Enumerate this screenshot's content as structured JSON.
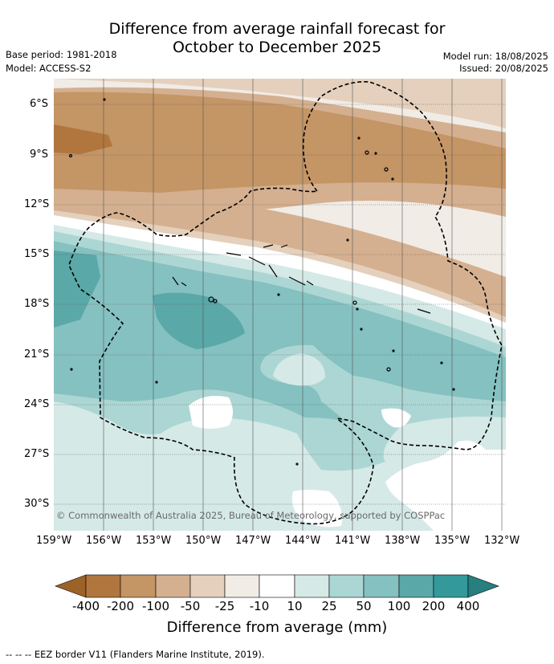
{
  "title": {
    "line1": "Difference from average rainfall forecast for",
    "line2": "October to December 2025"
  },
  "meta": {
    "base_period": "Base period: 1981-2018",
    "model": "Model: ACCESS-S2",
    "model_run": "Model run: 18/08/2025",
    "issued": "Issued: 20/08/2025"
  },
  "axes": {
    "lat_labels": [
      "6°S",
      "9°S",
      "12°S",
      "15°S",
      "18°S",
      "21°S",
      "24°S",
      "27°S",
      "30°S"
    ],
    "lon_labels": [
      "159°W",
      "156°W",
      "153°W",
      "150°W",
      "147°W",
      "144°W",
      "141°W",
      "138°W",
      "135°W",
      "132°W"
    ]
  },
  "copyright": "© Commonwealth of Australia 2025, Bureau of Meteorology, supported by COSPPac",
  "colorbar": {
    "title": "Difference from average (mm)",
    "labels": [
      "-400",
      "-200",
      "-100",
      "-50",
      "-25",
      "-10",
      "10",
      "25",
      "50",
      "100",
      "200",
      "400"
    ],
    "colors": {
      "below_400": "#9c6228",
      "n400_n200": "#b0763e",
      "n200_n100": "#c49565",
      "n100_n50": "#d4b090",
      "n50_n25": "#e4d0bc",
      "n25_n10": "#f1ece6",
      "n10_p10": "#ffffff",
      "p10_p25": "#d5e9e7",
      "p25_p50": "#acd6d4",
      "p50_p100": "#84c1c0",
      "p100_p200": "#5aa8a8",
      "p200_p400": "#34999a",
      "above_400": "#277f7f"
    }
  },
  "footer": "-- -- -- EEZ border V11 (Flanders Marine Institute, 2019)."
}
